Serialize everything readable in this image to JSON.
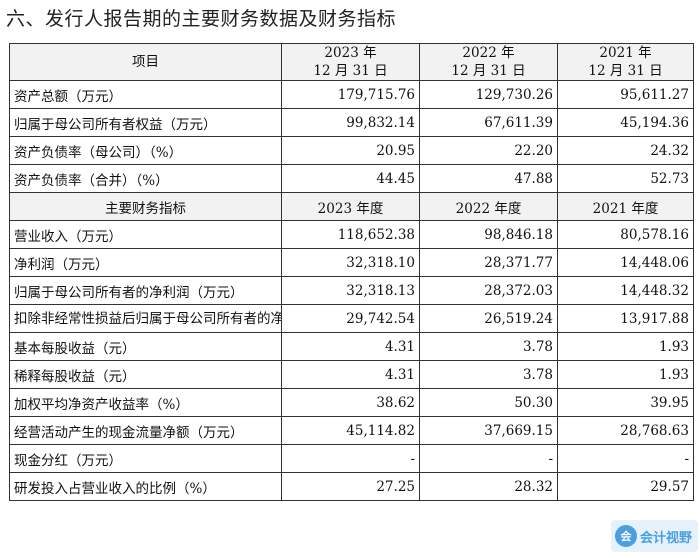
{
  "heading": "六、发行人报告期的主要财务数据及财务指标",
  "header1": {
    "item": "项目",
    "years": [
      {
        "year": "2023 年",
        "date": "12 月 31 日"
      },
      {
        "year": "2022 年",
        "date": "12 月 31 日"
      },
      {
        "year": "2021 年",
        "date": "12 月 31 日"
      }
    ]
  },
  "balance_rows": [
    {
      "label": "资产总额（万元）",
      "values": [
        "179,715.76",
        "129,730.26",
        "95,611.27"
      ]
    },
    {
      "label": "归属于母公司所有者权益（万元）",
      "values": [
        "99,832.14",
        "67,611.39",
        "45,194.36"
      ]
    },
    {
      "label": "资产负债率（母公司）（%）",
      "values": [
        "20.95",
        "22.20",
        "24.32"
      ]
    },
    {
      "label": "资产负债率（合并）（%）",
      "values": [
        "44.45",
        "47.88",
        "52.73"
      ]
    }
  ],
  "header2": {
    "item": "主要财务指标",
    "years": [
      "2023 年度",
      "2022 年度",
      "2021 年度"
    ]
  },
  "indicator_rows": [
    {
      "label": "营业收入（万元）",
      "values": [
        "118,652.38",
        "98,846.18",
        "80,578.16"
      ]
    },
    {
      "label": "净利润（万元）",
      "values": [
        "32,318.10",
        "28,371.77",
        "14,448.06"
      ]
    },
    {
      "label": "归属于母公司所有者的净利润（万元）",
      "values": [
        "32,318.13",
        "28,372.03",
        "14,448.32"
      ]
    },
    {
      "label": "扣除非经常性损益后归属于母公司所有者的净利润（万元）",
      "values": [
        "29,742.54",
        "26,519.24",
        "13,917.88"
      ]
    },
    {
      "label": "基本每股收益（元）",
      "values": [
        "4.31",
        "3.78",
        "1.93"
      ]
    },
    {
      "label": "稀释每股收益（元）",
      "values": [
        "4.31",
        "3.78",
        "1.93"
      ]
    },
    {
      "label": "加权平均净资产收益率（%）",
      "values": [
        "38.62",
        "50.30",
        "39.95"
      ]
    },
    {
      "label": "经营活动产生的现金流量净额（万元）",
      "values": [
        "45,114.82",
        "37,669.15",
        "28,768.63"
      ]
    },
    {
      "label": "现金分红（万元）",
      "values": [
        "-",
        "-",
        "-"
      ]
    },
    {
      "label": "研发投入占营业收入的比例（%）",
      "values": [
        "27.25",
        "28.32",
        "29.57"
      ]
    }
  ],
  "watermark": {
    "icon": "会",
    "text": "会计视野"
  }
}
